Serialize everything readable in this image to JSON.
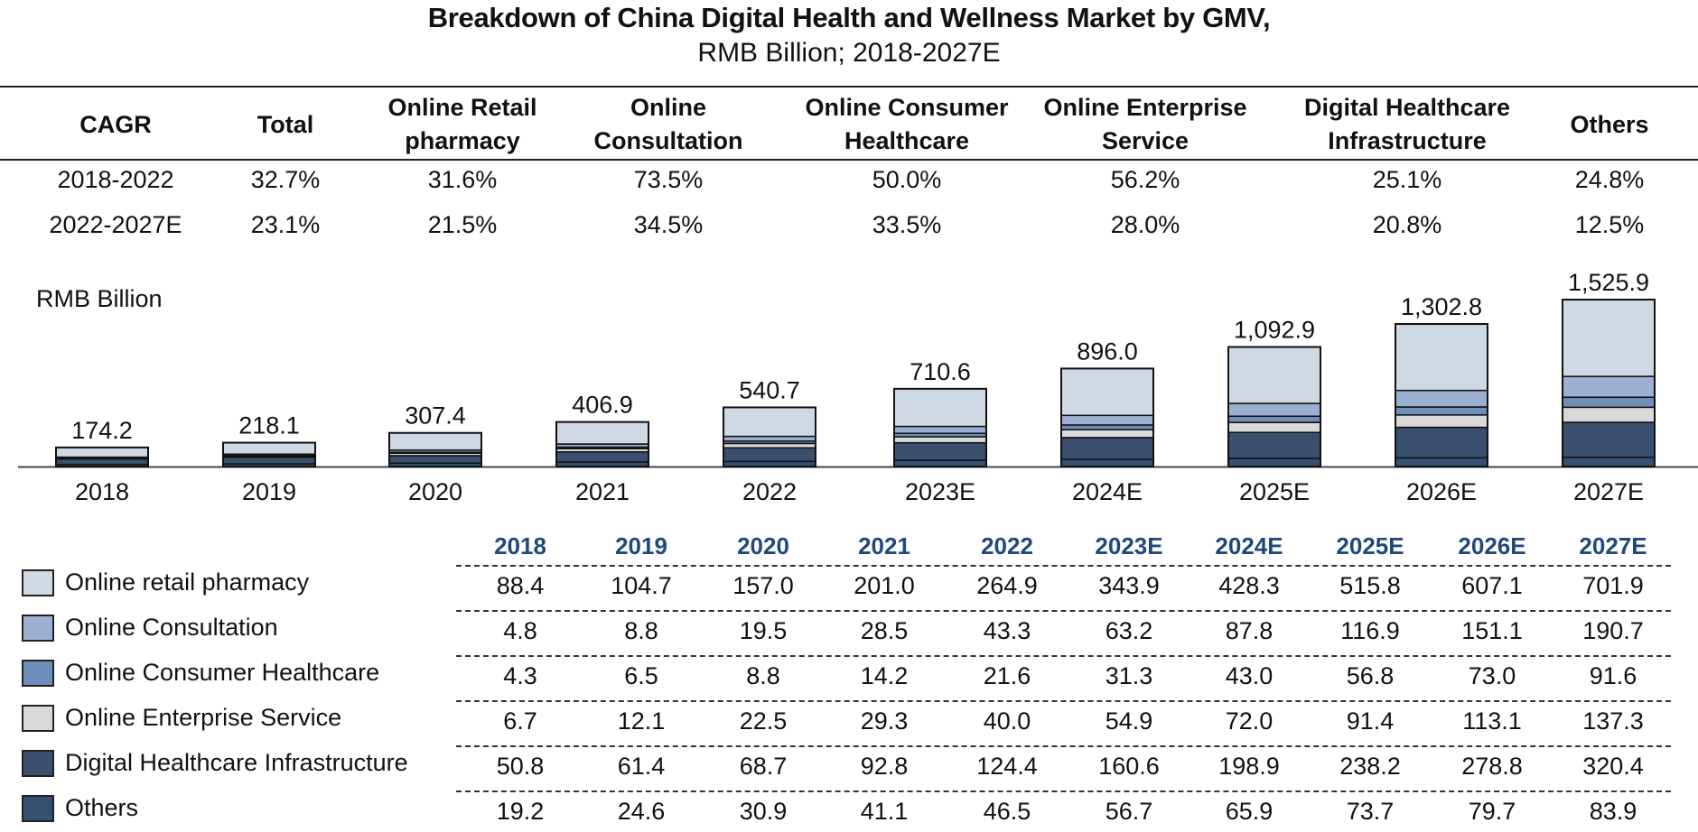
{
  "title": "Breakdown of China Digital Health and Wellness Market by GMV,",
  "subtitle": "RMB Billion; 2018-2027E",
  "cagr_table": {
    "headers": [
      "CAGR",
      "Total",
      "Online Retail pharmacy",
      "Online Consultation",
      "Online Consumer Healthcare",
      "Online Enterprise Service",
      "Digital Healthcare Infrastructure",
      "Others"
    ],
    "rows": [
      [
        "2018-2022",
        "32.7%",
        "31.6%",
        "73.5%",
        "50.0%",
        "56.2%",
        "25.1%",
        "24.8%"
      ],
      [
        "2022-2027E",
        "23.1%",
        "21.5%",
        "34.5%",
        "33.5%",
        "28.0%",
        "20.8%",
        "12.5%"
      ]
    ]
  },
  "chart_data": {
    "type": "bar",
    "stacked": true,
    "title": "Breakdown of China Digital Health and Wellness Market by GMV, RMB Billion; 2018-2027E",
    "ylabel": "RMB Billion",
    "xlabel": "",
    "categories": [
      "2018",
      "2019",
      "2020",
      "2021",
      "2022",
      "2023E",
      "2024E",
      "2025E",
      "2026E",
      "2027E"
    ],
    "totals": [
      "174.2",
      "218.1",
      "307.4",
      "406.9",
      "540.7",
      "710.6",
      "896.0",
      "1,092.9",
      "1,302.8",
      "1,525.9"
    ],
    "series": [
      {
        "name": "Others",
        "color": "#355070",
        "values": [
          19.2,
          24.6,
          30.9,
          41.1,
          46.5,
          56.7,
          65.9,
          73.7,
          79.7,
          83.9
        ]
      },
      {
        "name": "Digital Healthcare Infrastructure",
        "color": "#3a4f6e",
        "values": [
          50.8,
          61.4,
          68.7,
          92.8,
          124.4,
          160.6,
          198.9,
          238.2,
          278.8,
          320.4
        ]
      },
      {
        "name": "Online Enterprise Service",
        "color": "#d9d9d9",
        "values": [
          6.7,
          12.1,
          22.5,
          29.3,
          40.0,
          54.9,
          72.0,
          91.4,
          113.1,
          137.3
        ]
      },
      {
        "name": "Online Consumer Healthcare",
        "color": "#6f8fbb",
        "values": [
          4.3,
          6.5,
          8.8,
          14.2,
          21.6,
          31.3,
          43.0,
          56.8,
          73.0,
          91.6
        ]
      },
      {
        "name": "Online Consultation",
        "color": "#9db0d1",
        "values": [
          4.8,
          8.8,
          19.5,
          28.5,
          43.3,
          63.2,
          87.8,
          116.9,
          151.1,
          190.7
        ]
      },
      {
        "name": "Online retail pharmacy",
        "color": "#cfd9e4",
        "values": [
          88.4,
          104.7,
          157.0,
          201.0,
          264.9,
          343.9,
          428.3,
          515.8,
          607.1,
          701.9
        ]
      }
    ],
    "ylim": [
      0,
      1600
    ],
    "grid": false,
    "legend": "bottom-left"
  },
  "legend": [
    {
      "label": "Online retail pharmacy",
      "color": "#cfd9e4"
    },
    {
      "label": "Online Consultation",
      "color": "#9db0d1"
    },
    {
      "label": "Online Consumer Healthcare",
      "color": "#6f8fbb"
    },
    {
      "label": "Online Enterprise Service",
      "color": "#d9d9d9"
    },
    {
      "label": "Digital Healthcare Infrastructure",
      "color": "#3a4f6e"
    },
    {
      "label": "Others",
      "color": "#355070"
    }
  ],
  "data_table": {
    "years": [
      "2018",
      "2019",
      "2020",
      "2021",
      "2022",
      "2023E",
      "2024E",
      "2025E",
      "2026E",
      "2027E"
    ],
    "rows": [
      [
        "88.4",
        "104.7",
        "157.0",
        "201.0",
        "264.9",
        "343.9",
        "428.3",
        "515.8",
        "607.1",
        "701.9"
      ],
      [
        "4.8",
        "8.8",
        "19.5",
        "28.5",
        "43.3",
        "63.2",
        "87.8",
        "116.9",
        "151.1",
        "190.7"
      ],
      [
        "4.3",
        "6.5",
        "8.8",
        "14.2",
        "21.6",
        "31.3",
        "43.0",
        "56.8",
        "73.0",
        "91.6"
      ],
      [
        "6.7",
        "12.1",
        "22.5",
        "29.3",
        "40.0",
        "54.9",
        "72.0",
        "91.4",
        "113.1",
        "137.3"
      ],
      [
        "50.8",
        "61.4",
        "68.7",
        "92.8",
        "124.4",
        "160.6",
        "198.9",
        "238.2",
        "278.8",
        "320.4"
      ],
      [
        "19.2",
        "24.6",
        "30.9",
        "41.1",
        "46.5",
        "56.7",
        "65.9",
        "73.7",
        "79.7",
        "83.9"
      ]
    ]
  }
}
